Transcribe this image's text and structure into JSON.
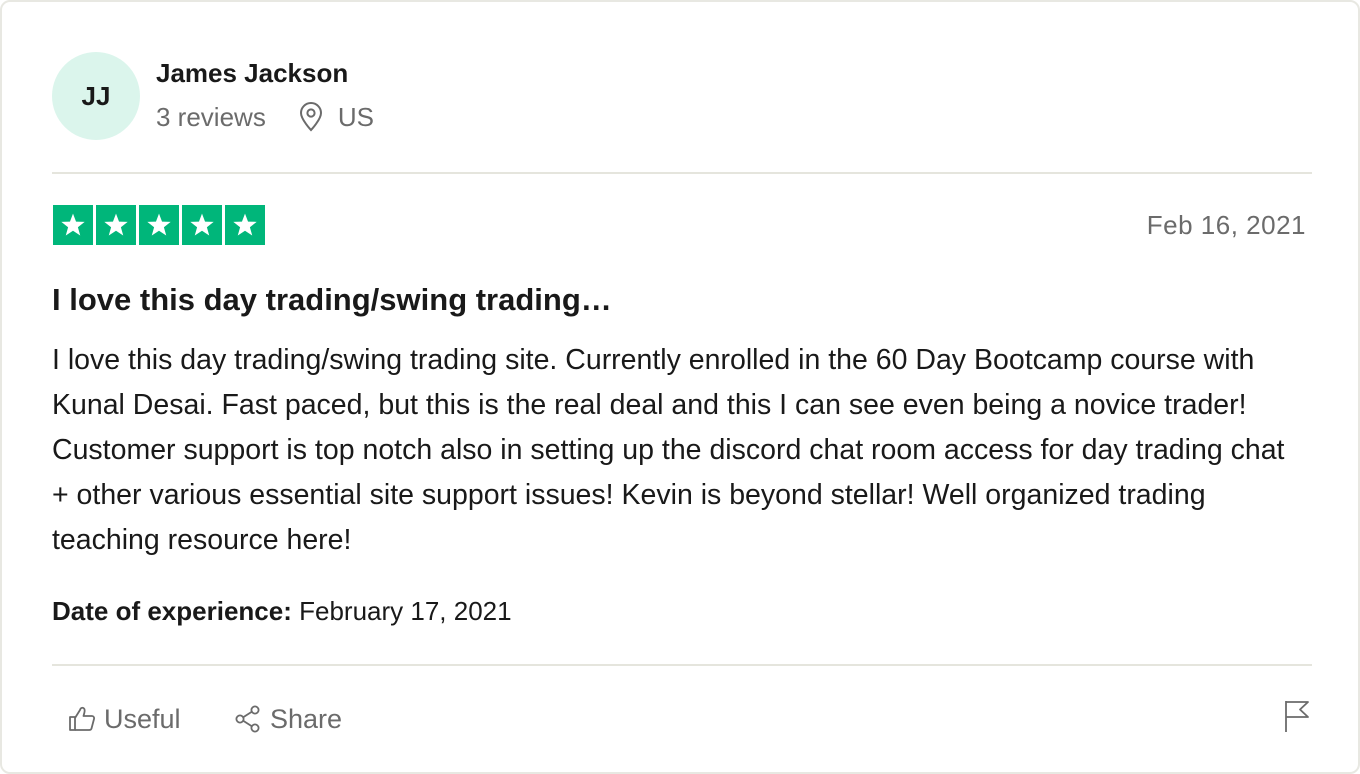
{
  "author": {
    "initials": "JJ",
    "name": "James Jackson",
    "reviews": "3 reviews",
    "country": "US",
    "avatar_color": "#dbf5ec"
  },
  "review": {
    "rating": 5,
    "rating_max": 5,
    "star_color": "#00b67a",
    "date": "Feb 16, 2021",
    "title": "I love this day trading/swing trading…",
    "body": "I love this day trading/swing trading site. Currently enrolled in the 60 Day Bootcamp course with Kunal Desai. Fast paced, but this is the real deal and this I can see even being a novice trader! Customer support is top notch also in setting up the discord chat room access for day trading chat + other various essential site support issues! Kevin is beyond stellar! Well organized trading teaching resource here!",
    "experience_label": "Date of experience:",
    "experience_date": "February 17, 2021"
  },
  "actions": {
    "useful_label": "Useful",
    "useful_icon": "thumbs-up-icon",
    "share_label": "Share",
    "share_icon": "share-icon",
    "report_icon": "flag-icon"
  }
}
